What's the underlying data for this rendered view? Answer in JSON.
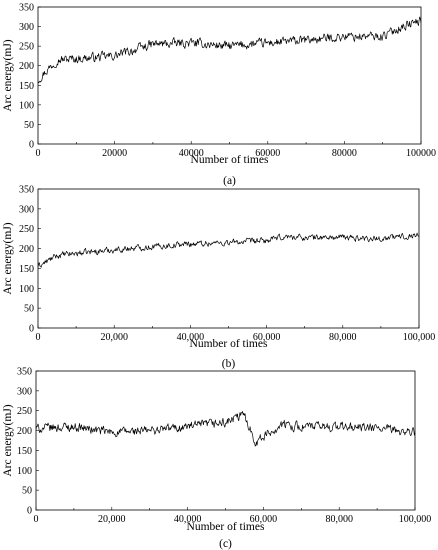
{
  "chart_data": [
    {
      "type": "line",
      "caption": "(a)",
      "xlabel": "Number of times",
      "ylabel": "Arc energy(mJ)",
      "xlim": [
        0,
        100000
      ],
      "ylim": [
        0,
        350
      ],
      "xticks": [
        0,
        20000,
        40000,
        60000,
        80000,
        100000
      ],
      "xtick_labels": [
        "0",
        "20000",
        "40000",
        "60000",
        "80000",
        "100000"
      ],
      "yticks": [
        0,
        50,
        100,
        150,
        200,
        250,
        300,
        350
      ],
      "ytick_labels": [
        "0",
        "50",
        "100",
        "150",
        "200",
        "250",
        "300",
        "350"
      ],
      "series": [
        {
          "x": [
            0,
            5000,
            10000,
            20000,
            30000,
            40000,
            50000,
            60000,
            70000,
            80000,
            90000,
            95000,
            100000
          ],
          "y": [
            165,
            215,
            218,
            225,
            255,
            258,
            250,
            258,
            265,
            275,
            275,
            300,
            315
          ],
          "noise": 18
        }
      ]
    },
    {
      "type": "line",
      "caption": "(b)",
      "xlabel": "Number of times",
      "ylabel": "Arc energy(mJ)",
      "xlim": [
        0,
        100000
      ],
      "ylim": [
        0,
        350
      ],
      "xticks": [
        0,
        20000,
        40000,
        60000,
        80000,
        100000
      ],
      "xtick_labels": [
        "0",
        "20,000",
        "40,000",
        "60,000",
        "80,000",
        "100,000"
      ],
      "yticks": [
        0,
        50,
        100,
        150,
        200,
        250,
        300,
        350
      ],
      "ytick_labels": [
        "0",
        "50",
        "100",
        "150",
        "200",
        "250",
        "300",
        "350"
      ],
      "series": [
        {
          "x": [
            0,
            5000,
            10000,
            20000,
            30000,
            40000,
            50000,
            60000,
            65000,
            70000,
            80000,
            90000,
            100000
          ],
          "y": [
            155,
            182,
            188,
            197,
            205,
            212,
            215,
            220,
            230,
            228,
            228,
            225,
            235
          ],
          "noise": 12
        }
      ]
    },
    {
      "type": "line",
      "caption": "(c)",
      "xlabel": "Number of times",
      "ylabel": "Arc energy(mJ)",
      "xlim": [
        0,
        100000
      ],
      "ylim": [
        0,
        350
      ],
      "xticks": [
        0,
        20000,
        40000,
        60000,
        80000,
        100000
      ],
      "xtick_labels": [
        "0",
        "20,000",
        "40,000",
        "60,000",
        "80,000",
        "100,000"
      ],
      "yticks": [
        0,
        50,
        100,
        150,
        200,
        250,
        300,
        350
      ],
      "ytick_labels": [
        "0",
        "50",
        "100",
        "150",
        "200",
        "250",
        "300",
        "350"
      ],
      "series": [
        {
          "x": [
            0,
            10000,
            20000,
            30000,
            40000,
            50000,
            55000,
            58000,
            60000,
            65000,
            70000,
            80000,
            90000,
            100000
          ],
          "y": [
            205,
            210,
            195,
            200,
            210,
            220,
            240,
            170,
            185,
            215,
            210,
            210,
            205,
            195
          ],
          "noise": 18
        }
      ]
    }
  ]
}
